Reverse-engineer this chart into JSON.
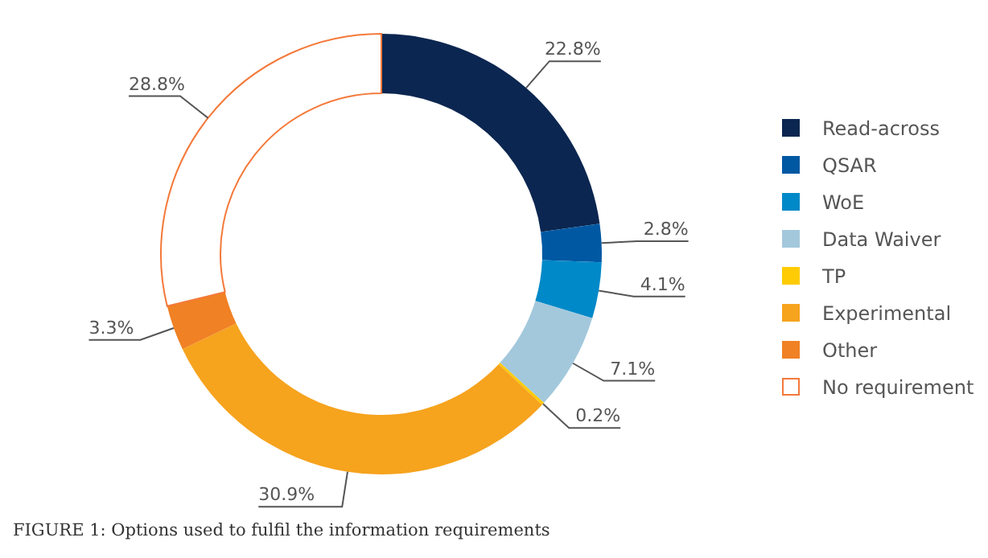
{
  "chart_data": {
    "type": "donut",
    "title": "FIGURE 1: Options used to fulfil the information requirements",
    "categories": [
      "Read-across",
      "QSAR",
      "WoE",
      "Data Waiver",
      "TP",
      "Experimental",
      "Other",
      "No requirement"
    ],
    "values": [
      22.8,
      2.8,
      4.1,
      7.1,
      0.2,
      30.9,
      3.3,
      28.8
    ],
    "colors": [
      "#0b2650",
      "#0058a3",
      "#0089c8",
      "#a3c8dc",
      "#ffcb05",
      "#f6a31e",
      "#f08124",
      "#ffffff"
    ],
    "value_labels": [
      "22.8%",
      "2.8%",
      "4.1%",
      "7.1%",
      "0.2%",
      "30.9%",
      "3.3%",
      "28.8%"
    ],
    "legend": "right"
  }
}
